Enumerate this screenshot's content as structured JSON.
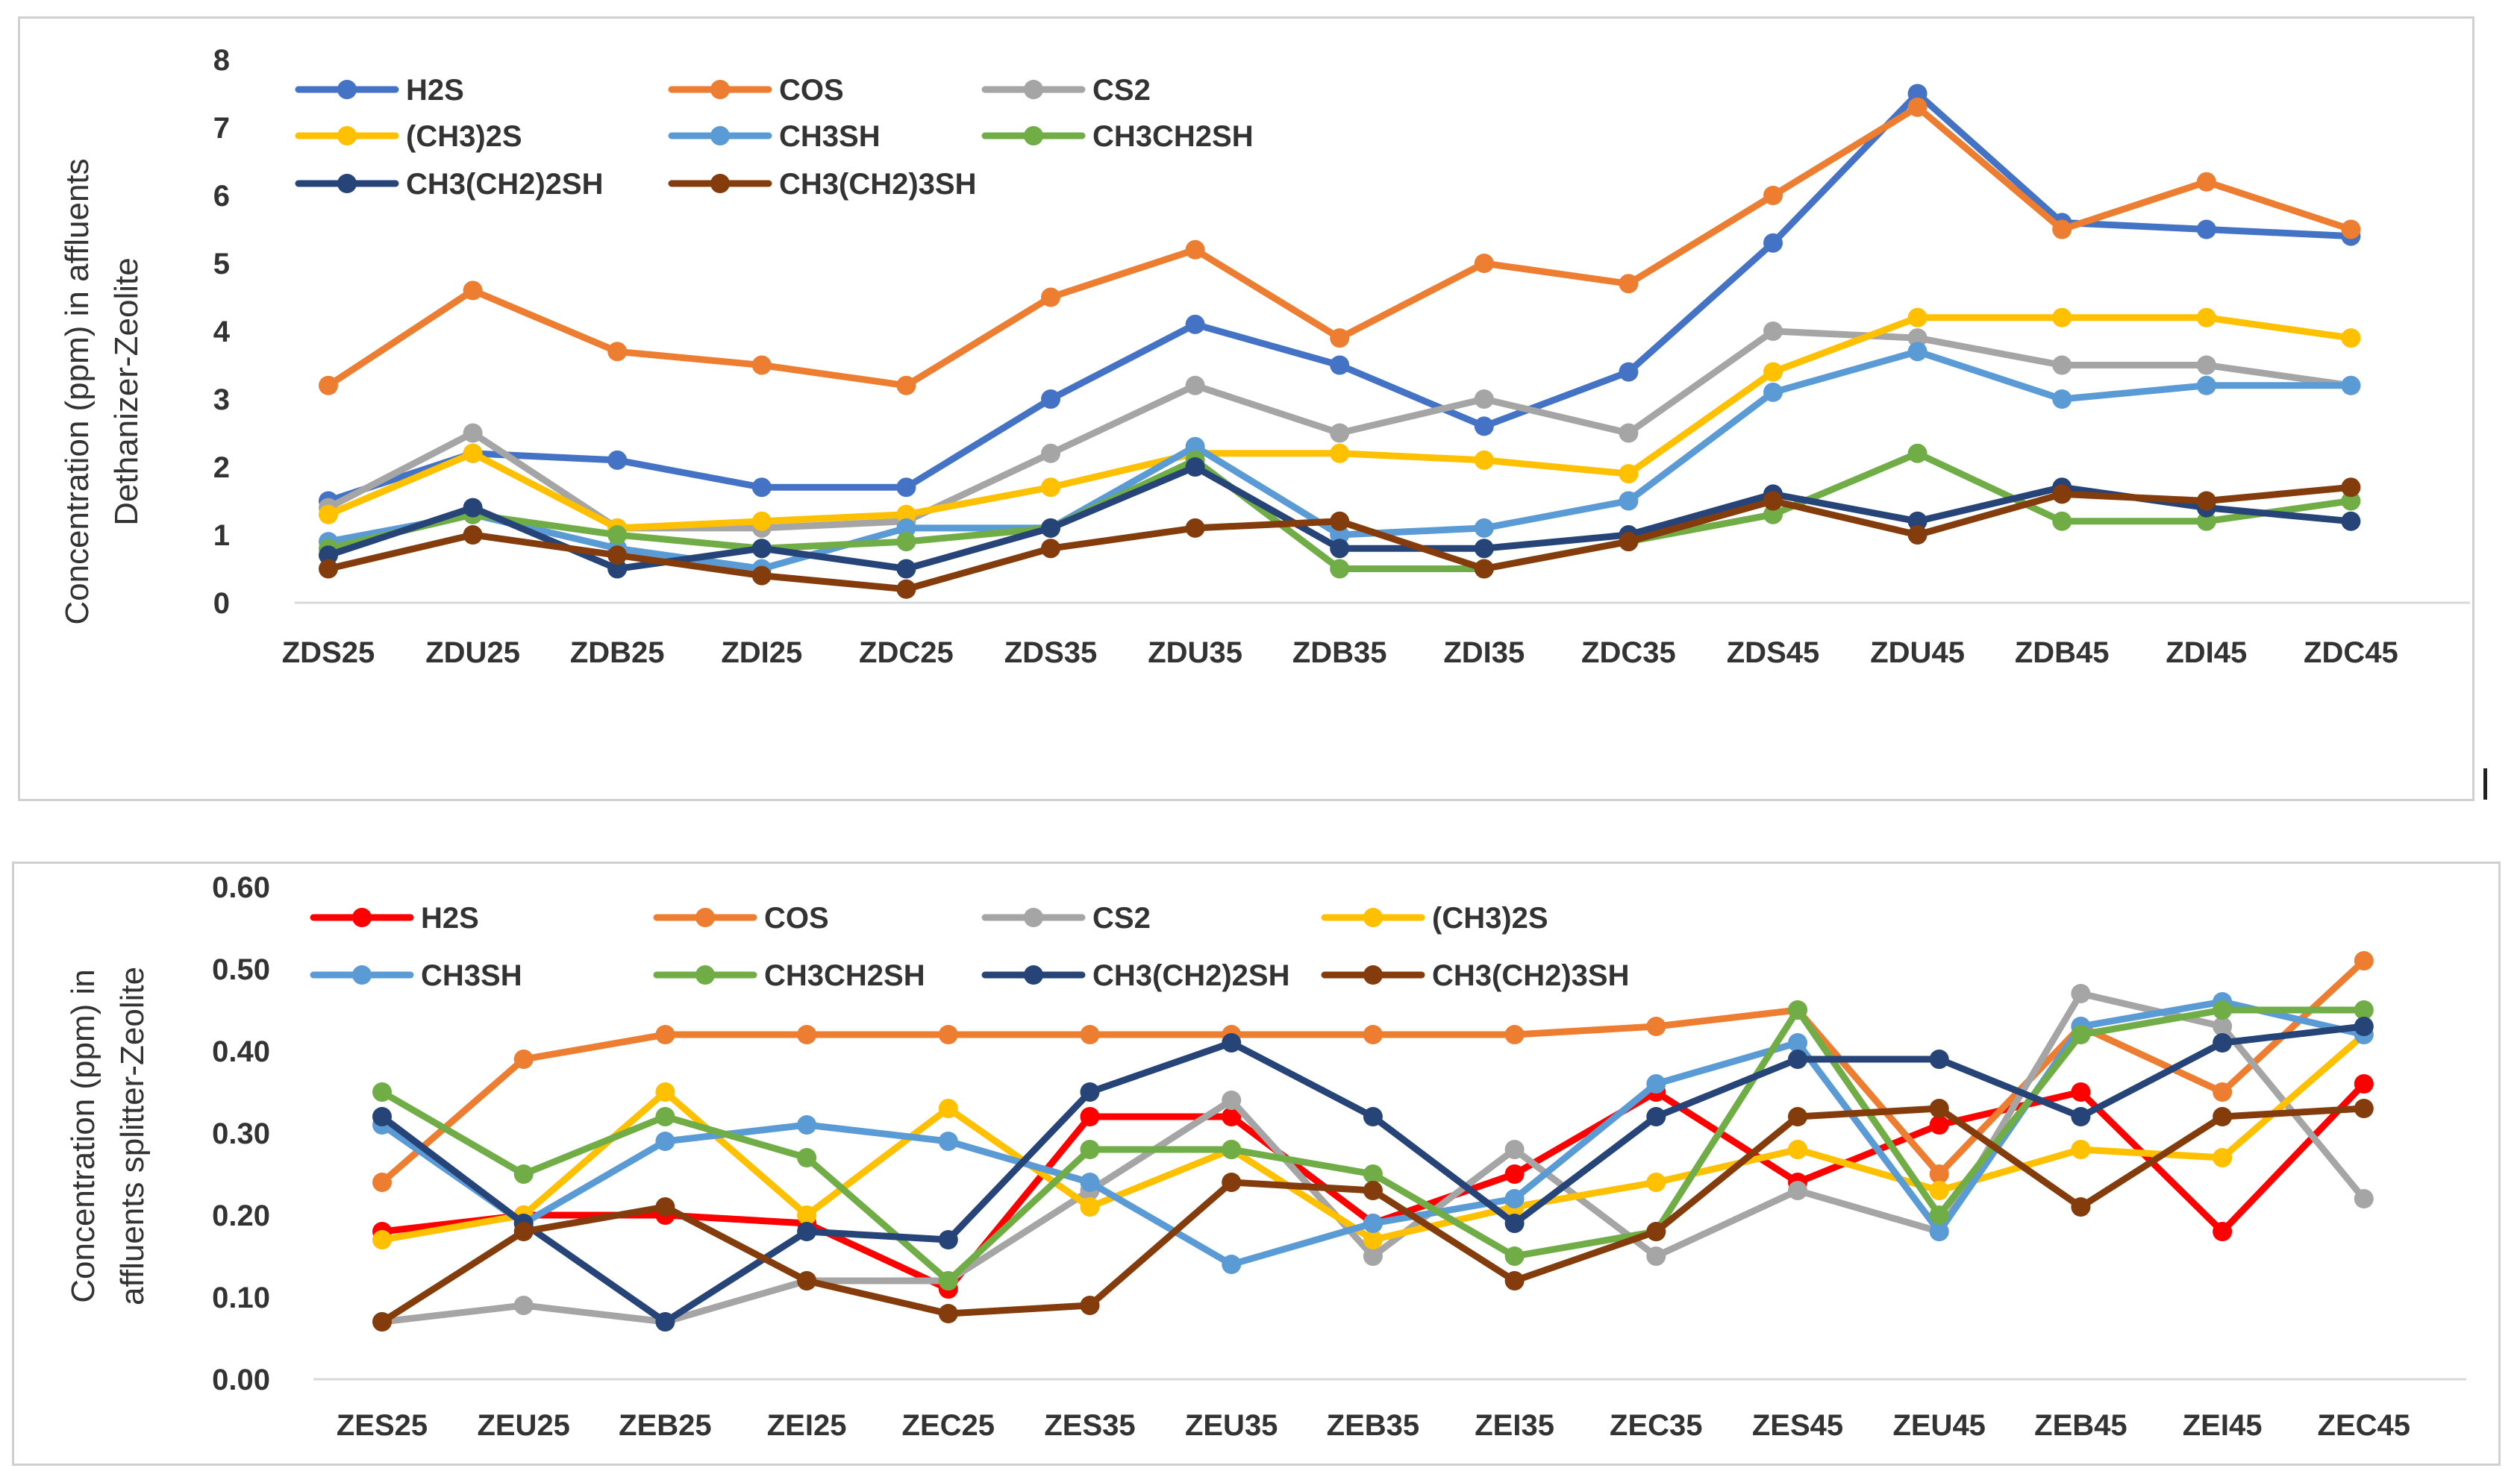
{
  "colors": {
    "H2S": "#4472C4",
    "H2S_red": "#FF0000",
    "COS": "#ED7D31",
    "CS2": "#A5A5A5",
    "CH3_2S": "#FFC000",
    "CH3SH": "#5B9BD5",
    "CH3CH2SH": "#70AD47",
    "CH3CH2_2SH": "#264478",
    "CH3CH2_3SH": "#843C0C"
  },
  "chart_data": [
    {
      "type": "line",
      "ylabel": "Concentration (ppm) in affluents Dethanizer-Zeolite",
      "ylim": [
        0,
        8
      ],
      "yticks": [
        "0",
        "1",
        "2",
        "3",
        "4",
        "5",
        "6",
        "7",
        "8"
      ],
      "grid": false,
      "legend": "top-left",
      "categories": [
        "ZDS25",
        "ZDU25",
        "ZDB25",
        "ZDI25",
        "ZDC25",
        "ZDS35",
        "ZDU35",
        "ZDB35",
        "ZDI35",
        "ZDC35",
        "ZDS45",
        "ZDU45",
        "ZDB45",
        "ZDI45",
        "ZDC45"
      ],
      "series": [
        {
          "name": "H2S",
          "color": "#4472C4",
          "values": [
            1.5,
            2.2,
            2.1,
            1.7,
            1.7,
            3.0,
            4.1,
            3.5,
            2.6,
            3.4,
            5.3,
            7.5,
            5.6,
            5.5,
            5.4
          ]
        },
        {
          "name": "COS",
          "color": "#ED7D31",
          "values": [
            3.2,
            4.6,
            3.7,
            3.5,
            3.2,
            4.5,
            5.2,
            3.9,
            5.0,
            4.7,
            6.0,
            7.3,
            5.5,
            6.2,
            5.5
          ]
        },
        {
          "name": "CS2",
          "color": "#A5A5A5",
          "values": [
            1.4,
            2.5,
            1.1,
            1.1,
            1.2,
            2.2,
            3.2,
            2.5,
            3.0,
            2.5,
            4.0,
            3.9,
            3.5,
            3.5,
            3.2
          ]
        },
        {
          "name": "(CH3)2S",
          "color": "#FFC000",
          "values": [
            1.3,
            2.2,
            1.1,
            1.2,
            1.3,
            1.7,
            2.2,
            2.2,
            2.1,
            1.9,
            3.4,
            4.2,
            4.2,
            4.2,
            3.9
          ]
        },
        {
          "name": "CH3SH",
          "color": "#5B9BD5",
          "values": [
            0.9,
            1.3,
            0.8,
            0.5,
            1.1,
            1.1,
            2.3,
            1.0,
            1.1,
            1.5,
            3.1,
            3.7,
            3.0,
            3.2,
            3.2
          ]
        },
        {
          "name": "CH3CH2SH",
          "color": "#70AD47",
          "values": [
            0.8,
            1.3,
            1.0,
            0.8,
            0.9,
            1.1,
            2.1,
            0.5,
            0.5,
            0.9,
            1.3,
            2.2,
            1.2,
            1.2,
            1.5
          ]
        },
        {
          "name": "CH3(CH2)2SH",
          "color": "#264478",
          "values": [
            0.7,
            1.4,
            0.5,
            0.8,
            0.5,
            1.1,
            2.0,
            0.8,
            0.8,
            1.0,
            1.6,
            1.2,
            1.7,
            1.4,
            1.2
          ]
        },
        {
          "name": "CH3(CH2)3SH",
          "color": "#843C0C",
          "values": [
            0.5,
            1.0,
            0.7,
            0.4,
            0.2,
            0.8,
            1.1,
            1.2,
            0.5,
            0.9,
            1.5,
            1.0,
            1.6,
            1.5,
            1.7
          ]
        }
      ]
    },
    {
      "type": "line",
      "ylabel": "Concentration (ppm) in affluents splitter-Zeolite",
      "ylim": [
        0,
        0.6
      ],
      "yticks": [
        "0.00",
        "0.10",
        "0.20",
        "0.30",
        "0.40",
        "0.50",
        "0.60"
      ],
      "grid": false,
      "legend": "top-left",
      "categories": [
        "ZES25",
        "ZEU25",
        "ZEB25",
        "ZEI25",
        "ZEC25",
        "ZES35",
        "ZEU35",
        "ZEB35",
        "ZEI35",
        "ZEC35",
        "ZES45",
        "ZEU45",
        "ZEB45",
        "ZEI45",
        "ZEC45"
      ],
      "series": [
        {
          "name": "H2S",
          "color": "#FF0000",
          "values": [
            0.18,
            0.2,
            0.2,
            0.19,
            0.11,
            0.32,
            0.32,
            0.19,
            0.25,
            0.35,
            0.24,
            0.31,
            0.35,
            0.18,
            0.36
          ]
        },
        {
          "name": "COS",
          "color": "#ED7D31",
          "values": [
            0.24,
            0.39,
            0.42,
            0.42,
            0.42,
            0.42,
            0.42,
            0.42,
            0.42,
            0.43,
            0.45,
            0.25,
            0.43,
            0.35,
            0.51
          ]
        },
        {
          "name": "CS2",
          "color": "#A5A5A5",
          "values": [
            0.07,
            0.09,
            0.07,
            0.12,
            0.12,
            0.23,
            0.34,
            0.15,
            0.28,
            0.15,
            0.23,
            0.18,
            0.47,
            0.43,
            0.22
          ]
        },
        {
          "name": "(CH3)2S",
          "color": "#FFC000",
          "values": [
            0.17,
            0.2,
            0.35,
            0.2,
            0.33,
            0.21,
            0.28,
            0.17,
            0.21,
            0.24,
            0.28,
            0.23,
            0.28,
            0.27,
            0.42
          ]
        },
        {
          "name": "CH3SH",
          "color": "#5B9BD5",
          "values": [
            0.31,
            0.19,
            0.29,
            0.31,
            0.29,
            0.24,
            0.14,
            0.19,
            0.22,
            0.36,
            0.41,
            0.18,
            0.43,
            0.46,
            0.42
          ]
        },
        {
          "name": "CH3CH2SH",
          "color": "#70AD47",
          "values": [
            0.35,
            0.25,
            0.32,
            0.27,
            0.12,
            0.28,
            0.28,
            0.25,
            0.15,
            0.18,
            0.45,
            0.2,
            0.42,
            0.45,
            0.45
          ]
        },
        {
          "name": "CH3(CH2)2SH",
          "color": "#264478",
          "values": [
            0.32,
            0.19,
            0.07,
            0.18,
            0.17,
            0.35,
            0.41,
            0.32,
            0.19,
            0.32,
            0.39,
            0.39,
            0.32,
            0.41,
            0.43
          ]
        },
        {
          "name": "CH3(CH2)3SH",
          "color": "#843C0C",
          "values": [
            0.07,
            0.18,
            0.21,
            0.12,
            0.08,
            0.09,
            0.24,
            0.23,
            0.12,
            0.18,
            0.32,
            0.33,
            0.21,
            0.32,
            0.33
          ]
        }
      ]
    }
  ]
}
